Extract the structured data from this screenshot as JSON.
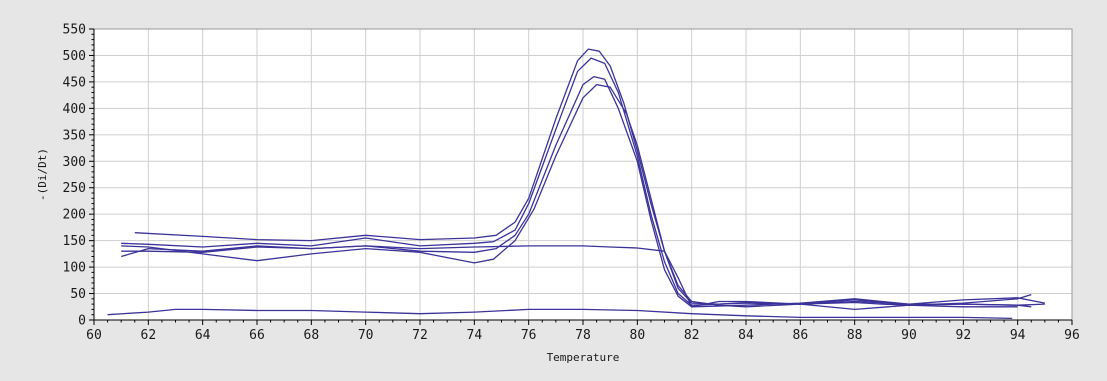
{
  "chart_data": {
    "type": "line",
    "xlabel": "Temperature",
    "ylabel": "-(Di/Dt)",
    "xlim": [
      60,
      96
    ],
    "ylim": [
      0,
      550
    ],
    "xticks": [
      60,
      62,
      64,
      66,
      68,
      70,
      72,
      74,
      76,
      78,
      80,
      82,
      84,
      86,
      88,
      90,
      92,
      94,
      96
    ],
    "yticks": [
      0,
      50,
      100,
      150,
      200,
      250,
      300,
      350,
      400,
      450,
      500,
      550
    ],
    "grid": true,
    "legend": "none",
    "colors": {
      "plot_bg": "#ffffff",
      "panel_bg": "#e6e6e6",
      "grid": "#cfcfcf",
      "line": "#3b3399",
      "axis": "#000000"
    },
    "series": [
      {
        "x": [
          61.5,
          64,
          66,
          68,
          70,
          72,
          74,
          74.8,
          75.5,
          76,
          77,
          77.8,
          78.2,
          78.6,
          79,
          79.5,
          80,
          80.5,
          81,
          81.5,
          82,
          83,
          84,
          86,
          88,
          89,
          90,
          92,
          94,
          95
        ],
        "y": [
          165,
          158,
          152,
          150,
          160,
          152,
          155,
          160,
          185,
          230,
          380,
          490,
          512,
          508,
          480,
          410,
          320,
          220,
          130,
          60,
          32,
          30,
          32,
          30,
          33,
          30,
          28,
          30,
          28,
          30
        ]
      },
      {
        "x": [
          61,
          62,
          64,
          66,
          68,
          70,
          72,
          74,
          74.7,
          75.5,
          76,
          77,
          77.8,
          78.3,
          78.8,
          79.3,
          80,
          80.5,
          81,
          81.5,
          82,
          83,
          84,
          86,
          88,
          90,
          92,
          94,
          94.5
        ],
        "y": [
          145,
          143,
          138,
          145,
          140,
          155,
          140,
          145,
          148,
          170,
          220,
          360,
          470,
          495,
          485,
          430,
          310,
          200,
          110,
          50,
          28,
          30,
          33,
          30,
          38,
          28,
          32,
          40,
          48
        ]
      },
      {
        "x": [
          61,
          62,
          64,
          66,
          68,
          70,
          72,
          74,
          74.8,
          75.5,
          76,
          77,
          78,
          78.4,
          78.8,
          79.3,
          80,
          80.5,
          81,
          81.5,
          82,
          84,
          86,
          88,
          90,
          92,
          94,
          95
        ],
        "y": [
          120,
          135,
          130,
          140,
          135,
          140,
          130,
          128,
          135,
          160,
          200,
          330,
          445,
          460,
          455,
          400,
          300,
          190,
          95,
          45,
          25,
          28,
          32,
          40,
          30,
          38,
          42,
          32
        ]
      },
      {
        "x": [
          61,
          62,
          64,
          66,
          68,
          70,
          72,
          73,
          74,
          74.7,
          75.5,
          76.2,
          77,
          78,
          78.5,
          79,
          79.6,
          80,
          80.5,
          81,
          81.5,
          82,
          83,
          84,
          86,
          88,
          90,
          92,
          94
        ],
        "y": [
          140,
          138,
          125,
          112,
          125,
          135,
          128,
          118,
          108,
          115,
          150,
          210,
          310,
          420,
          445,
          440,
          390,
          330,
          230,
          130,
          65,
          35,
          28,
          25,
          30,
          20,
          28,
          25,
          25
        ]
      },
      {
        "x": [
          61,
          62,
          64,
          66,
          68,
          70,
          72,
          74,
          76,
          78,
          79,
          80,
          81,
          81.5,
          82,
          83,
          84,
          86,
          88,
          90,
          92,
          94,
          94.5
        ],
        "y": [
          130,
          130,
          128,
          138,
          135,
          140,
          135,
          138,
          140,
          140,
          138,
          136,
          130,
          80,
          25,
          35,
          35,
          30,
          35,
          30,
          30,
          28,
          25
        ]
      },
      {
        "x": [
          60.5,
          62,
          63,
          64,
          66,
          68,
          70,
          72,
          74,
          76,
          78,
          80,
          82,
          84,
          86,
          88,
          90,
          92,
          93.8
        ],
        "y": [
          10,
          15,
          20,
          20,
          18,
          18,
          15,
          12,
          15,
          20,
          20,
          18,
          12,
          8,
          5,
          5,
          5,
          5,
          3
        ]
      }
    ]
  }
}
